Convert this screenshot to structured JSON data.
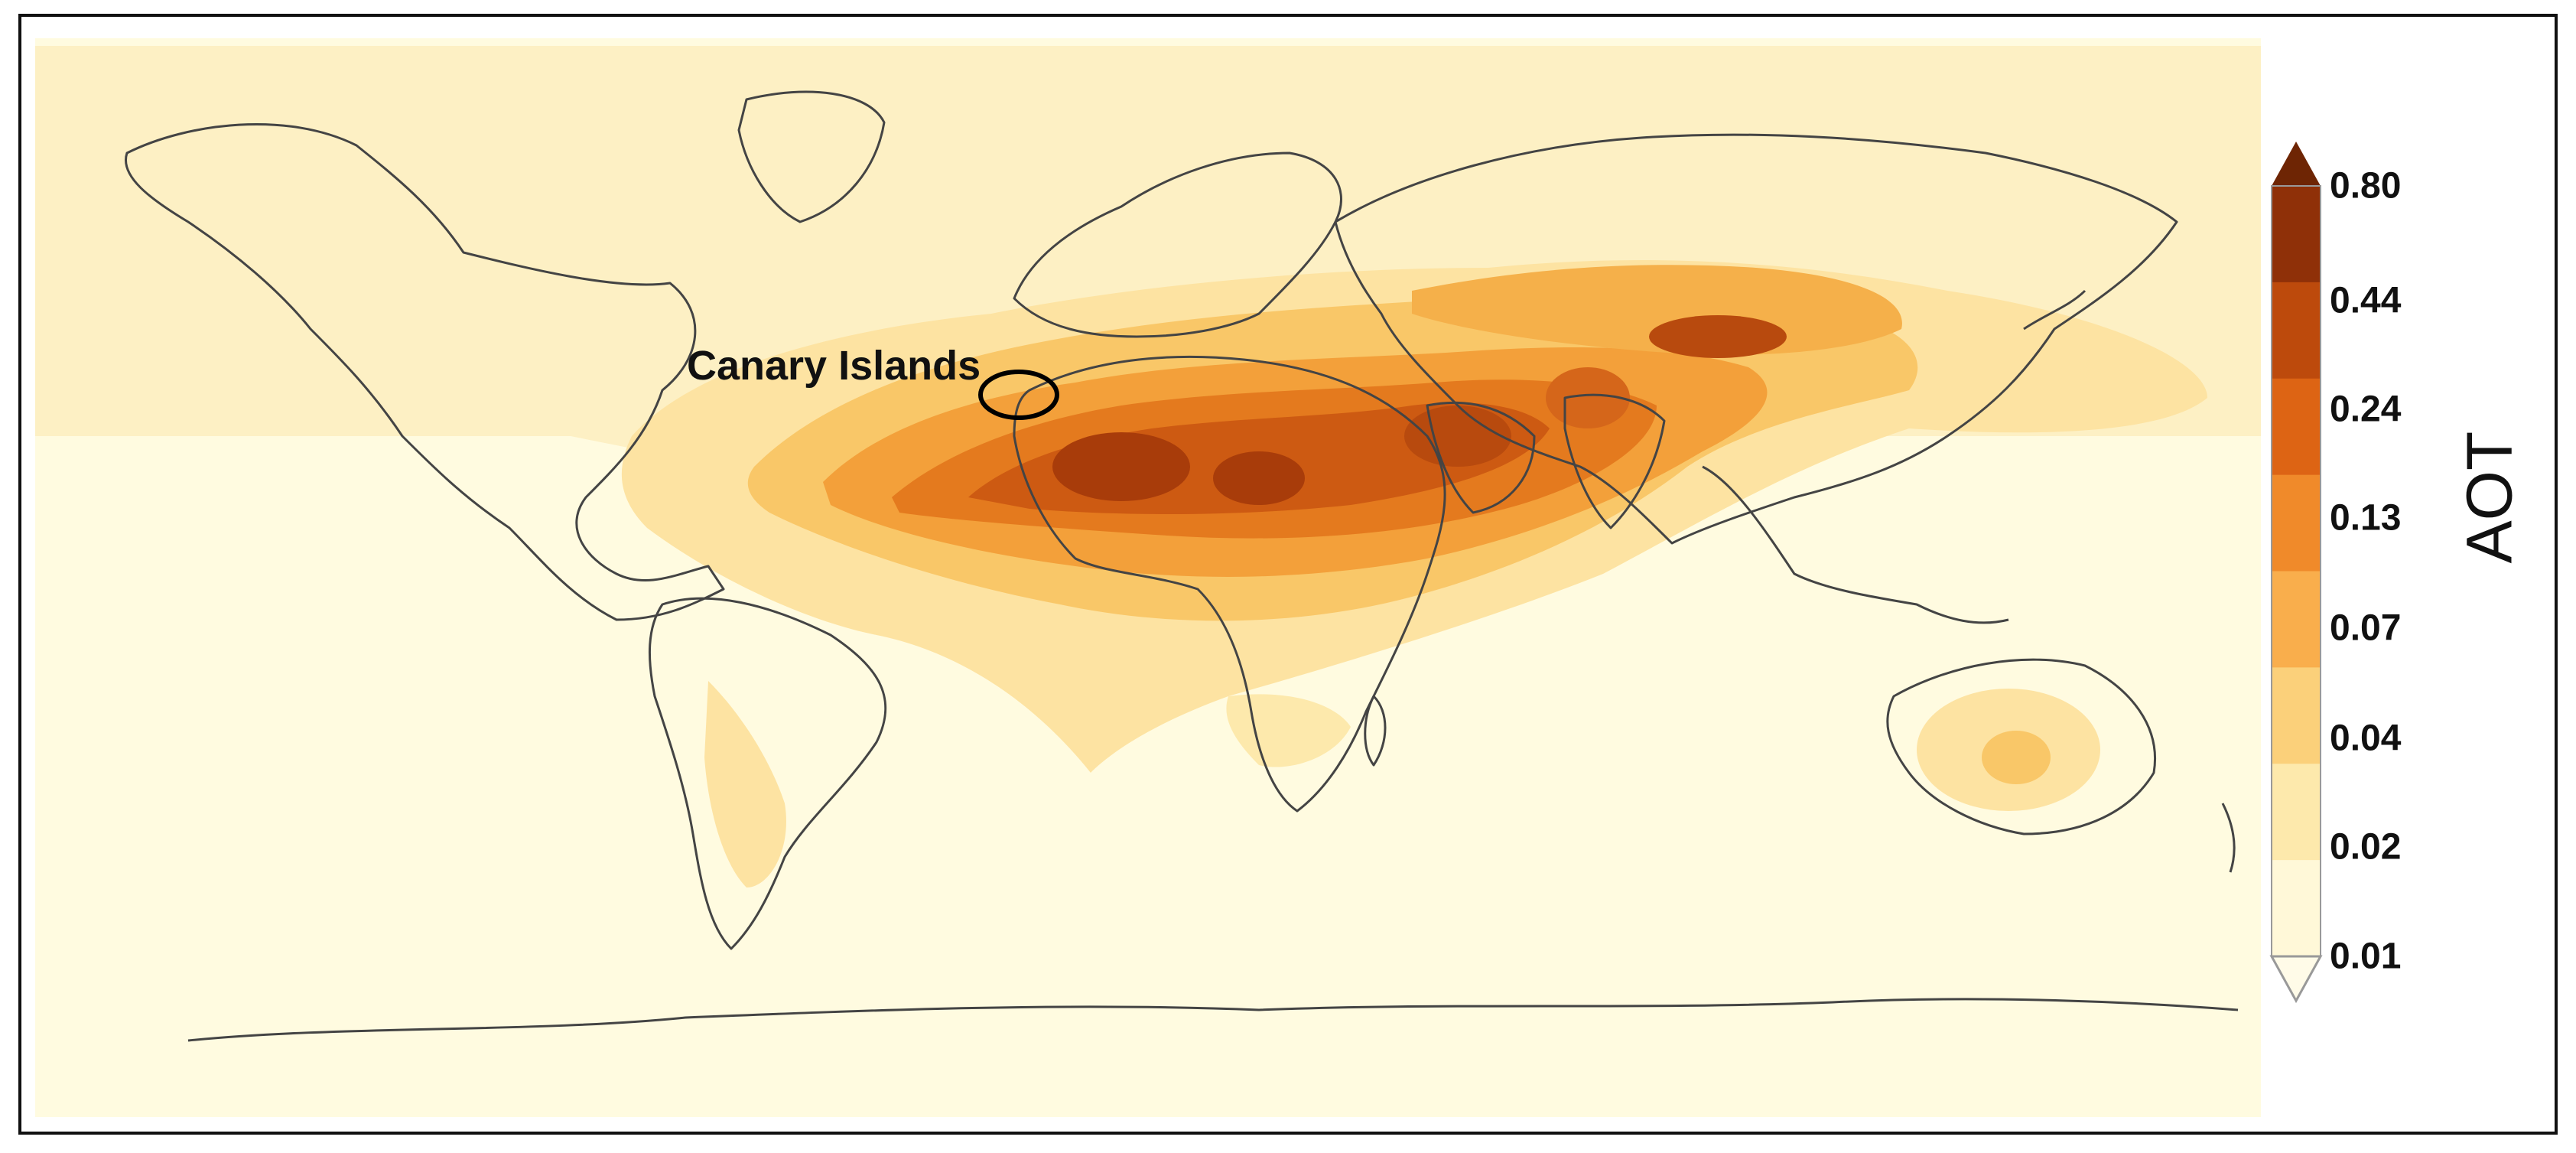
{
  "map": {
    "annotation": "Canary Islands",
    "colors": {
      "ocean_bg": "#fffbe0",
      "coastline": "#444444",
      "annotation_ring": "#000000"
    }
  },
  "colorbar": {
    "title": "AOT",
    "ticks": [
      "0.80",
      "0.44",
      "0.24",
      "0.13",
      "0.07",
      "0.04",
      "0.02",
      "0.01"
    ],
    "bands": [
      "#fff8d8",
      "#fde9ac",
      "#fbd07a",
      "#f9ae4c",
      "#f08a2a",
      "#dd6414",
      "#bd4a0c",
      "#8f3008"
    ],
    "over_color": "#6e2504",
    "under_color": "#fffbe8"
  }
}
